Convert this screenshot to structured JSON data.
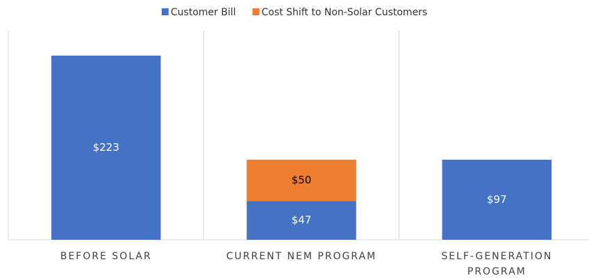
{
  "chart_data": {
    "type": "stacked_bar",
    "categories": [
      "BEFORE SOLAR",
      "CURRENT NEM PROGRAM",
      "SELF-GENERATION PROGRAM"
    ],
    "series": [
      {
        "name": "Customer Bill",
        "color": "#4472c4",
        "values": [
          223,
          47,
          97
        ],
        "value_labels": [
          "$223",
          "$47",
          "$97"
        ]
      },
      {
        "name": "Cost Shift to Non-Solar Customers",
        "color": "#ed7d31",
        "values": [
          null,
          50,
          null
        ],
        "value_labels": [
          null,
          "$50",
          null
        ]
      }
    ],
    "ylim": [
      0,
      250
    ],
    "legend": "top"
  }
}
